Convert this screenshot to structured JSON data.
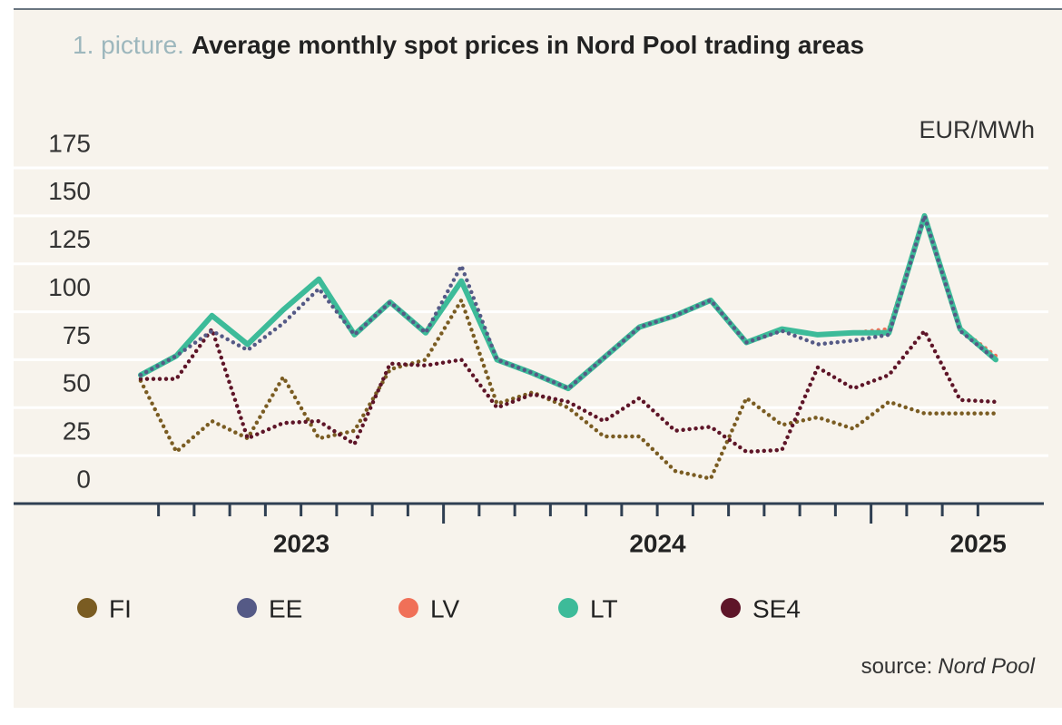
{
  "chart_data": {
    "type": "line",
    "title_prefix": "1. picture.",
    "title": "Average monthly spot prices in Nord Pool trading areas",
    "unit_label": "EUR/MWh",
    "source_label": "source:",
    "source": "Nord Pool",
    "categories": [
      null,
      null,
      null,
      null,
      "2023",
      null,
      null,
      null,
      null,
      null,
      null,
      null,
      null,
      null,
      "2024",
      null,
      null,
      null,
      null,
      null,
      null,
      null,
      null,
      "2025",
      null
    ],
    "ylim": [
      0,
      175
    ],
    "yticks": [
      0,
      25,
      50,
      75,
      100,
      125,
      150,
      175
    ],
    "grid": true,
    "legend": "bottom",
    "series": [
      {
        "name": "FI",
        "color": "#7a5c22",
        "values": [
          64,
          27,
          43,
          34,
          66,
          34,
          38,
          70,
          75,
          106,
          52,
          58,
          50,
          35,
          35,
          17,
          13,
          55,
          41,
          45,
          39,
          53,
          47,
          47,
          47
        ]
      },
      {
        "name": "EE",
        "color": "#555a86",
        "values": [
          67,
          77,
          90,
          80,
          94,
          112,
          88,
          105,
          89,
          124,
          75,
          68,
          60,
          76,
          92,
          98,
          106,
          84,
          90,
          83,
          85,
          88,
          150,
          90,
          75
        ]
      },
      {
        "name": "LV",
        "color": "#f07058",
        "values": [
          67,
          77,
          98,
          83,
          101,
          117,
          88,
          105,
          89,
          116,
          75,
          68,
          60,
          76,
          92,
          98,
          106,
          84,
          91,
          88,
          89,
          91,
          150,
          91,
          77
        ]
      },
      {
        "name": "LT",
        "color": "#3dbb99",
        "values": [
          67,
          77,
          98,
          83,
          101,
          117,
          88,
          105,
          89,
          116,
          75,
          68,
          60,
          76,
          92,
          98,
          106,
          84,
          91,
          88,
          89,
          89,
          150,
          91,
          75
        ]
      },
      {
        "name": "SE4",
        "color": "#5e1528",
        "values": [
          65,
          65,
          91,
          34,
          42,
          43,
          31,
          73,
          72,
          75,
          50,
          57,
          53,
          43,
          55,
          38,
          40,
          27,
          28,
          71,
          60,
          67,
          90,
          54,
          53
        ]
      }
    ]
  }
}
